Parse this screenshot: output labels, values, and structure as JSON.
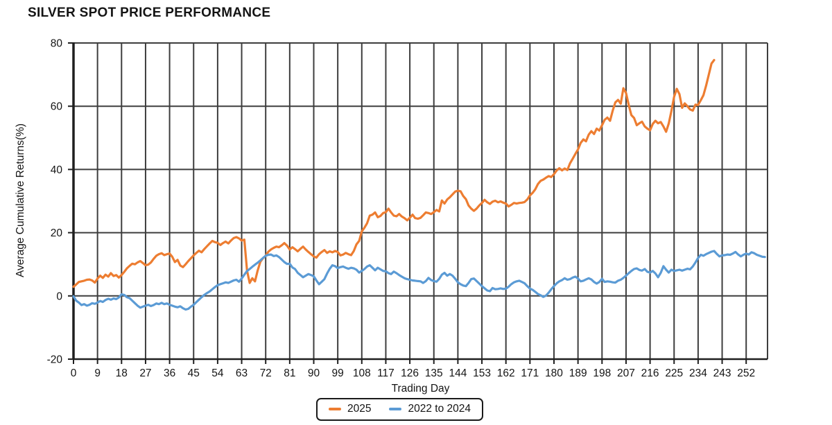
{
  "title": "SILVER SPOT PRICE PERFORMANCE",
  "x_axis": {
    "title": "Trading Day"
  },
  "y_axis": {
    "title": "Average Cumulative Returns(%)"
  },
  "colors": {
    "grid": "#3d3d3d",
    "axis": "#1f1f1f",
    "text": "#141414",
    "background": "#ffffff"
  },
  "chart_data": {
    "type": "line",
    "title": "SILVER SPOT PRICE PERFORMANCE",
    "xlabel": "Trading Day",
    "ylabel": "Average Cumulative Returns(%)",
    "xlim": [
      0,
      260
    ],
    "ylim": [
      -20,
      80
    ],
    "x_ticks": [
      0,
      9,
      18,
      27,
      36,
      45,
      54,
      63,
      72,
      81,
      90,
      99,
      108,
      117,
      126,
      135,
      144,
      153,
      162,
      171,
      180,
      189,
      198,
      207,
      216,
      225,
      234,
      243,
      252
    ],
    "y_ticks": [
      -20,
      0,
      20,
      40,
      60,
      80
    ],
    "grid": "both",
    "legend_position": "bottom-center",
    "series": [
      {
        "name": "2025",
        "color": "#ED7D31",
        "start_day": 0,
        "values": [
          2.9,
          3.6,
          4.4,
          4.6,
          4.8,
          5.1,
          5.2,
          4.9,
          4.2,
          5.5,
          6.4,
          5.7,
          6.7,
          6.1,
          7.2,
          6.3,
          6.6,
          5.8,
          6.6,
          7.6,
          8.7,
          9.5,
          10.2,
          10.0,
          10.6,
          11.0,
          10.4,
          9.7,
          9.9,
          10.6,
          11.7,
          12.7,
          13.2,
          13.5,
          12.9,
          13.2,
          13.4,
          12.4,
          10.7,
          11.4,
          9.6,
          9.1,
          10.0,
          11.0,
          11.9,
          12.8,
          13.6,
          14.3,
          13.8,
          14.8,
          15.7,
          16.6,
          17.4,
          17.0,
          16.8,
          16.1,
          16.7,
          17.2,
          16.6,
          17.5,
          18.3,
          18.6,
          18.2,
          17.5,
          17.8,
          8.0,
          4.1,
          5.6,
          4.6,
          8.0,
          10.8,
          11.9,
          12.7,
          14.0,
          14.7,
          15.2,
          15.6,
          15.4,
          16.0,
          16.7,
          15.9,
          14.7,
          15.4,
          14.8,
          14.1,
          14.9,
          15.6,
          14.7,
          13.9,
          13.2,
          12.5,
          12.1,
          13.2,
          13.9,
          14.5,
          13.6,
          14.1,
          13.8,
          14.2,
          13.9,
          12.8,
          13.1,
          13.6,
          13.2,
          12.9,
          14.2,
          16.3,
          17.4,
          20.4,
          21.6,
          23.0,
          25.4,
          25.7,
          26.4,
          24.9,
          25.3,
          26.2,
          26.5,
          27.6,
          26.4,
          25.4,
          25.2,
          25.9,
          25.1,
          24.6,
          23.9,
          24.7,
          25.7,
          24.6,
          24.4,
          24.7,
          25.5,
          26.4,
          26.2,
          25.9,
          26.5,
          27.2,
          26.7,
          30.2,
          29.2,
          30.5,
          31.2,
          32.1,
          33.0,
          33.3,
          33.1,
          31.6,
          30.6,
          28.6,
          27.6,
          26.9,
          27.6,
          28.6,
          29.4,
          30.4,
          29.6,
          29.1,
          29.8,
          30.1,
          29.6,
          29.9,
          29.5,
          29.2,
          28.3,
          28.8,
          29.4,
          29.2,
          29.4,
          29.5,
          29.7,
          30.5,
          31.8,
          32.6,
          33.7,
          35.4,
          36.4,
          36.8,
          37.4,
          37.9,
          37.6,
          38.5,
          39.7,
          40.4,
          39.7,
          40.3,
          39.8,
          41.9,
          43.4,
          44.9,
          46.3,
          48.4,
          49.5,
          48.9,
          51.0,
          52.1,
          51.2,
          52.9,
          52.3,
          54.0,
          55.7,
          56.4,
          55.4,
          58.6,
          61.2,
          62.0,
          60.8,
          65.7,
          64.2,
          60.4,
          57.2,
          56.3,
          54.0,
          54.6,
          55.1,
          53.6,
          52.9,
          52.4,
          54.4,
          55.4,
          54.6,
          55.0,
          53.6,
          51.9,
          54.5,
          58.5,
          63.0,
          65.5,
          63.8,
          59.5,
          60.9,
          60.0,
          59.0,
          58.6,
          60.5,
          60.4,
          61.9,
          63.5,
          66.5,
          70.0,
          73.5,
          74.6
        ]
      },
      {
        "name": "2022 to 2024",
        "color": "#5B9BD5",
        "start_day": 0,
        "values": [
          -0.1,
          -1.5,
          -2.1,
          -2.9,
          -2.6,
          -3.1,
          -2.8,
          -2.3,
          -2.5,
          -2.1,
          -1.6,
          -1.9,
          -1.3,
          -0.9,
          -1.2,
          -0.8,
          -1.0,
          -0.5,
          0.5,
          0.3,
          -0.4,
          -0.7,
          -1.5,
          -2.3,
          -3.1,
          -3.7,
          -3.4,
          -3.1,
          -2.8,
          -3.2,
          -2.9,
          -2.4,
          -2.6,
          -2.2,
          -2.6,
          -2.4,
          -2.8,
          -3.1,
          -3.4,
          -3.6,
          -3.3,
          -3.9,
          -4.3,
          -4.1,
          -3.4,
          -2.8,
          -2.0,
          -1.2,
          -0.4,
          0.3,
          0.9,
          1.4,
          2.1,
          2.8,
          3.4,
          3.7,
          4.0,
          4.3,
          4.1,
          4.5,
          4.9,
          5.1,
          4.5,
          5.5,
          6.7,
          7.9,
          8.5,
          9.2,
          9.9,
          10.5,
          11.2,
          12.0,
          12.7,
          13.0,
          13.1,
          12.6,
          12.8,
          12.3,
          11.5,
          10.7,
          10.1,
          10.2,
          9.0,
          8.5,
          7.3,
          6.6,
          5.9,
          6.4,
          6.9,
          6.6,
          6.2,
          4.9,
          3.7,
          4.5,
          5.3,
          7.1,
          8.6,
          9.7,
          9.4,
          8.8,
          9.1,
          9.3,
          8.9,
          8.6,
          8.9,
          8.7,
          8.3,
          7.4,
          7.9,
          8.5,
          9.3,
          9.7,
          8.9,
          8.1,
          8.9,
          8.4,
          7.9,
          7.8,
          7.2,
          6.9,
          7.7,
          7.2,
          6.6,
          6.1,
          5.6,
          5.3,
          5.1,
          4.9,
          4.8,
          4.7,
          4.6,
          4.1,
          4.7,
          5.7,
          5.0,
          4.7,
          4.5,
          5.4,
          6.7,
          7.3,
          6.4,
          6.9,
          6.4,
          5.4,
          4.3,
          3.7,
          3.3,
          3.1,
          4.1,
          5.3,
          5.5,
          4.7,
          3.9,
          3.1,
          2.4,
          1.7,
          1.5,
          2.5,
          2.1,
          2.2,
          2.4,
          2.2,
          2.3,
          2.9,
          3.7,
          4.3,
          4.6,
          4.8,
          4.4,
          4.0,
          3.1,
          2.3,
          1.9,
          1.3,
          0.6,
          0.2,
          -0.3,
          0.1,
          1.0,
          2.1,
          3.1,
          4.0,
          4.6,
          5.0,
          5.6,
          5.1,
          5.3,
          5.8,
          6.1,
          5.5,
          4.6,
          4.8,
          5.2,
          5.6,
          5.2,
          4.4,
          3.9,
          4.4,
          5.4,
          4.4,
          4.6,
          4.5,
          4.3,
          4.2,
          4.8,
          5.1,
          5.7,
          6.4,
          7.2,
          7.9,
          8.5,
          8.7,
          8.2,
          8.0,
          8.5,
          7.6,
          7.4,
          7.9,
          7.1,
          5.9,
          7.3,
          9.4,
          8.3,
          7.4,
          8.3,
          7.9,
          8.1,
          8.3,
          8.0,
          8.3,
          8.6,
          8.4,
          9.3,
          10.6,
          12.0,
          13.0,
          12.7,
          13.2,
          13.6,
          14.0,
          14.2,
          13.3,
          12.5,
          12.8,
          12.9,
          13.1,
          13.0,
          13.4,
          13.9,
          13.1,
          12.5,
          13.0,
          13.4,
          13.1,
          13.8,
          13.5,
          13.0,
          12.7,
          12.4,
          12.3
        ]
      }
    ]
  }
}
